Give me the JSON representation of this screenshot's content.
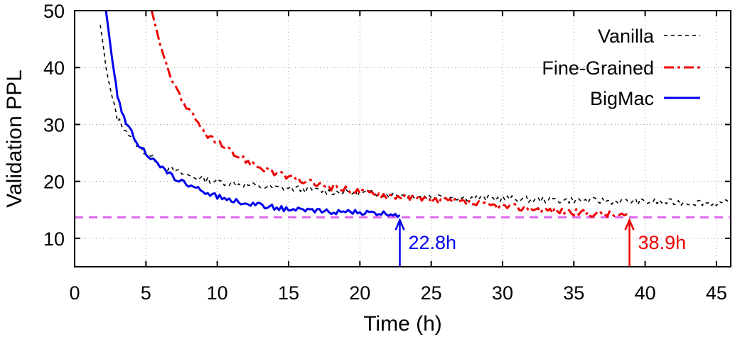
{
  "chart_data": {
    "type": "line",
    "title": "",
    "xlabel": "Time (h)",
    "ylabel": "Validation PPL",
    "xlim": [
      0,
      46
    ],
    "ylim": [
      5,
      50
    ],
    "xticks": [
      0,
      5,
      10,
      15,
      20,
      25,
      30,
      35,
      40,
      45
    ],
    "yticks": [
      10,
      20,
      30,
      40,
      50
    ],
    "grid": true,
    "legend_position": "top-right",
    "reference_line": {
      "y": 13.7,
      "color": "#dd66ee",
      "style": "dashed"
    },
    "colors": {
      "vanilla": "#000000",
      "fine_grained": "#ee0000",
      "bigmac": "#0000ee",
      "reference": "#dd66ee"
    },
    "series": [
      {
        "name": "Vanilla",
        "style": "dashed",
        "color": "#000000",
        "x": [
          1.8,
          2.0,
          2.2,
          2.5,
          2.8,
          3.0,
          3.3,
          3.6,
          4.0,
          4.5,
          5.0,
          5.5,
          6.0,
          6.5,
          7.0,
          8.0,
          9.0,
          10.0,
          11.0,
          12.0,
          13.0,
          14.0,
          15.0,
          16.0,
          17.0,
          18.0,
          19.0,
          20.0,
          21.0,
          22.0,
          23.0,
          24.0,
          25.0,
          26.0,
          27.0,
          28.0,
          29.0,
          30.0,
          31.0,
          32.0,
          33.0,
          34.0,
          35.0,
          36.0,
          37.0,
          38.0,
          39.0,
          40.0,
          41.0,
          42.0,
          43.0,
          44.0,
          45.0,
          45.9
        ],
        "values": [
          47.5,
          44.0,
          40.0,
          36.0,
          33.0,
          31.0,
          30.0,
          29.0,
          27.5,
          26.2,
          25.0,
          24.0,
          23.0,
          22.3,
          21.8,
          21.0,
          20.4,
          20.0,
          19.7,
          19.4,
          19.1,
          18.9,
          18.8,
          18.6,
          18.4,
          18.2,
          18.1,
          18.0,
          17.8,
          17.7,
          17.6,
          17.5,
          17.4,
          17.3,
          17.2,
          17.1,
          17.0,
          17.0,
          16.9,
          16.8,
          16.8,
          16.7,
          16.7,
          16.6,
          16.6,
          16.5,
          16.5,
          16.4,
          16.4,
          16.3,
          16.3,
          16.3,
          16.2,
          16.2
        ]
      },
      {
        "name": "Fine-Grained",
        "style": "dash-dot",
        "color": "#ee0000",
        "x": [
          5.4,
          5.7,
          6.0,
          6.5,
          7.0,
          7.5,
          8.0,
          8.5,
          9.0,
          9.5,
          10.0,
          11.0,
          12.0,
          13.0,
          14.0,
          15.0,
          16.0,
          17.0,
          18.0,
          19.0,
          20.0,
          21.0,
          22.0,
          23.0,
          24.0,
          25.0,
          26.0,
          27.0,
          28.0,
          29.0,
          30.0,
          31.0,
          32.0,
          33.0,
          34.0,
          35.0,
          36.0,
          37.0,
          38.0,
          38.9
        ],
        "values": [
          50.0,
          47.0,
          44.0,
          40.0,
          37.0,
          34.5,
          32.5,
          30.5,
          29.0,
          27.7,
          26.8,
          25.0,
          23.7,
          22.5,
          21.5,
          20.7,
          20.0,
          19.5,
          19.0,
          18.6,
          18.2,
          17.9,
          17.6,
          17.3,
          17.0,
          16.8,
          16.5,
          16.3,
          16.0,
          15.8,
          15.6,
          15.4,
          15.2,
          15.0,
          14.8,
          14.6,
          14.4,
          14.3,
          14.1,
          13.9
        ]
      },
      {
        "name": "BigMac",
        "style": "solid",
        "color": "#0000ee",
        "x": [
          2.2,
          2.4,
          2.6,
          2.8,
          3.0,
          3.3,
          3.6,
          4.0,
          4.5,
          5.0,
          5.5,
          6.0,
          6.5,
          7.0,
          7.5,
          8.0,
          9.0,
          10.0,
          11.0,
          12.0,
          13.0,
          14.0,
          15.0,
          16.0,
          17.0,
          18.0,
          19.0,
          20.0,
          21.0,
          22.0,
          22.8
        ],
        "values": [
          50.0,
          46.0,
          42.0,
          38.5,
          35.0,
          32.5,
          30.5,
          28.5,
          26.5,
          25.0,
          23.7,
          22.5,
          21.5,
          20.7,
          20.0,
          19.3,
          18.2,
          17.4,
          16.7,
          16.2,
          15.8,
          15.4,
          15.1,
          14.9,
          14.8,
          14.7,
          14.6,
          14.5,
          14.4,
          14.3,
          14.1
        ]
      }
    ],
    "annotations": [
      {
        "x": 22.8,
        "y": 13.7,
        "text": "22.8h",
        "color": "#0000ee"
      },
      {
        "x": 38.9,
        "y": 13.7,
        "text": "38.9h",
        "color": "#ee0000"
      }
    ]
  }
}
